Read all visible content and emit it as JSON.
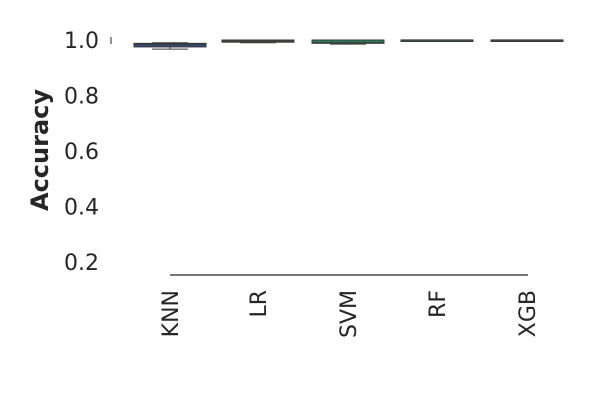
{
  "chart_data": {
    "type": "box",
    "title": "",
    "xlabel": "",
    "ylabel": "Accuracy",
    "ylim": [
      0.2,
      1.0
    ],
    "yticks": [
      "0.2",
      "0.4",
      "0.6",
      "0.8",
      "1.0"
    ],
    "categories": [
      "KNN",
      "LR",
      "SVM",
      "RF",
      "XGB"
    ],
    "boxes": [
      {
        "category": "KNN",
        "min": 0.967,
        "q1": 0.975,
        "median": 0.985,
        "q3": 0.988,
        "max": 0.99,
        "color": "#2f4b7c"
      },
      {
        "category": "LR",
        "min": 0.99,
        "q1": 0.992,
        "median": 0.997,
        "q3": 1.0,
        "max": 1.0,
        "color": "#5c5a2e"
      },
      {
        "category": "SVM",
        "min": 0.985,
        "q1": 0.988,
        "median": 0.99,
        "q3": 1.0,
        "max": 1.0,
        "color": "#2a7a5a"
      },
      {
        "category": "RF",
        "min": 0.997,
        "q1": 0.998,
        "median": 1.0,
        "q3": 1.0,
        "max": 1.0,
        "color": "#3a6b45"
      },
      {
        "category": "XGB",
        "min": 1.0,
        "q1": 1.0,
        "median": 1.0,
        "q3": 1.0,
        "max": 1.0,
        "color": "#3a5a4a"
      }
    ],
    "grid": false,
    "legend": "none"
  }
}
